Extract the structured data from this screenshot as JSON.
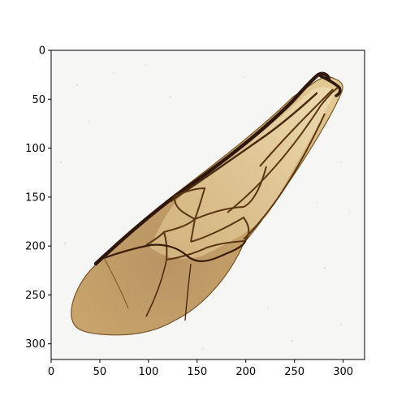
{
  "figure": {
    "image_subject": "insect wing (bee)",
    "axes": {
      "x_ticks": [
        "0",
        "50",
        "100",
        "150",
        "200",
        "250",
        "300"
      ],
      "y_ticks": [
        "0",
        "50",
        "100",
        "150",
        "200",
        "250",
        "300"
      ],
      "x_extent": [
        0,
        322
      ],
      "y_extent": [
        316,
        0
      ]
    },
    "colors": {
      "background": "#f6f6f4",
      "membrane_light": "#e7d4a8",
      "membrane_dark": "#b8935b",
      "vein": "#3b1e0a",
      "vein_mid": "#6a3f15"
    }
  }
}
